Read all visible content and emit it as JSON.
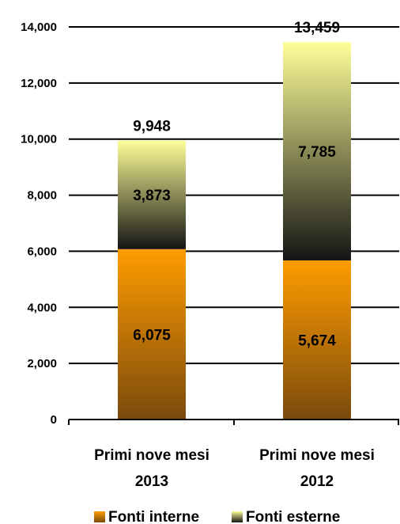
{
  "chart_data": {
    "type": "bar",
    "stacked": true,
    "categories": [
      "Primi nove mesi 2013",
      "Primi nove mesi 2012"
    ],
    "category_lines": [
      [
        "Primi nove mesi",
        "2013"
      ],
      [
        "Primi nove mesi",
        "2012"
      ]
    ],
    "series": [
      {
        "name": "Fonti interne",
        "values": [
          6075,
          5674
        ],
        "labels": [
          "6,075",
          "5,674"
        ]
      },
      {
        "name": "Fonti esterne",
        "values": [
          3873,
          7785
        ],
        "labels": [
          "3,873",
          "7,785"
        ]
      }
    ],
    "totals": [
      9948,
      13459
    ],
    "total_labels": [
      "9,948",
      "13,459"
    ],
    "ylim": [
      0,
      14000
    ],
    "yticks": [
      0,
      2000,
      4000,
      6000,
      8000,
      10000,
      12000,
      14000
    ],
    "ytick_labels": [
      "0",
      "2,000",
      "4,000",
      "6,000",
      "8,000",
      "10,000",
      "12,000",
      "14,000"
    ],
    "grid": true,
    "legend_position": "bottom",
    "colors": {
      "interne_light": "#ff9c00",
      "interne_dark": "#7a4a0c",
      "esterne_light": "#ffff99",
      "esterne_dark": "#141414"
    }
  }
}
